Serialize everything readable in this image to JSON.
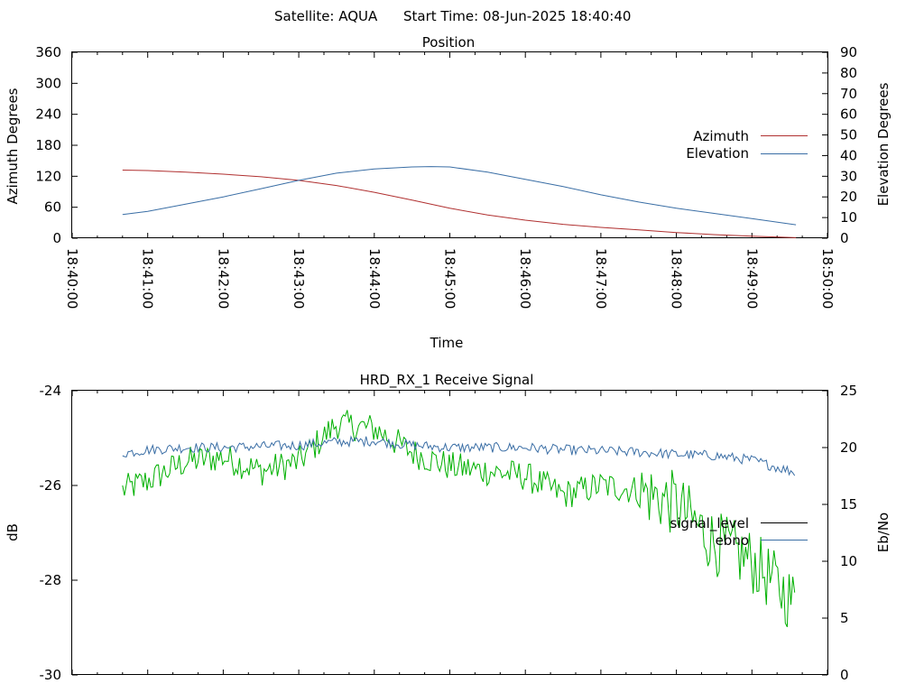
{
  "header": {
    "satellite": "Satellite: AQUA",
    "start_time": "Start Time: 08-Jun-2025 18:40:40"
  },
  "colors": {
    "azimuth": "#b03030",
    "elevation": "#3a6ea5",
    "signal_level": "#00b000",
    "ebno": "#3a6ea5",
    "legend_signal_level": "#000000"
  },
  "chart_data": [
    {
      "type": "line",
      "title": "Position",
      "xlabel": "Time",
      "ylabel": "Azimuth Degrees",
      "y2label": "Elevation Degrees",
      "x_tick_labels": [
        "18:40:00",
        "18:41:00",
        "18:42:00",
        "18:43:00",
        "18:44:00",
        "18:45:00",
        "18:46:00",
        "18:47:00",
        "18:48:00",
        "18:49:00",
        "18:50:00"
      ],
      "xlim": [
        "18:40:00",
        "18:50:00"
      ],
      "ylim": [
        0,
        360
      ],
      "y_ticks": [
        "0",
        "60",
        "120",
        "180",
        "240",
        "300",
        "360"
      ],
      "y2lim": [
        0,
        90
      ],
      "y2_ticks": [
        "0",
        "10",
        "20",
        "30",
        "40",
        "50",
        "60",
        "70",
        "80",
        "90"
      ],
      "legend_position": "right",
      "series": [
        {
          "name": "Azimuth",
          "axis": "left",
          "x": [
            "18:40:40",
            "18:41:00",
            "18:41:30",
            "18:42:00",
            "18:42:30",
            "18:43:00",
            "18:43:30",
            "18:44:00",
            "18:44:30",
            "18:45:00",
            "18:45:30",
            "18:46:00",
            "18:46:30",
            "18:47:00",
            "18:47:30",
            "18:48:00",
            "18:48:30",
            "18:49:00",
            "18:49:35"
          ],
          "values": [
            132,
            131,
            128,
            124,
            119,
            112,
            102,
            89,
            74,
            58,
            45,
            35,
            27,
            21,
            16,
            11,
            7,
            4,
            1
          ]
        },
        {
          "name": "Elevation",
          "axis": "right",
          "x": [
            "18:40:40",
            "18:41:00",
            "18:41:30",
            "18:42:00",
            "18:42:30",
            "18:43:00",
            "18:43:30",
            "18:44:00",
            "18:44:30",
            "18:44:45",
            "18:45:00",
            "18:45:30",
            "18:46:00",
            "18:46:30",
            "18:47:00",
            "18:47:30",
            "18:48:00",
            "18:48:30",
            "18:49:00",
            "18:49:35"
          ],
          "values": [
            11.5,
            13,
            16.5,
            20,
            24,
            28,
            31.5,
            33.5,
            34.5,
            34.7,
            34.5,
            32,
            28.5,
            25,
            21,
            17.5,
            14.5,
            12,
            9.5,
            6.5
          ]
        }
      ]
    },
    {
      "type": "line",
      "title": "HRD_RX_1 Receive Signal",
      "ylabel": "dB",
      "y2label": "Eb/No",
      "xlim": [
        "18:40:00",
        "18:50:00"
      ],
      "ylim": [
        -30,
        -24
      ],
      "y_ticks": [
        "-30",
        "-28",
        "-26",
        "-24"
      ],
      "y2lim": [
        0,
        25
      ],
      "y2_ticks": [
        "0",
        "5",
        "10",
        "15",
        "20",
        "25"
      ],
      "legend_position": "right",
      "series": [
        {
          "name": "signal_level",
          "axis": "left",
          "x": [
            "18:40:40",
            "18:41:00",
            "18:41:30",
            "18:42:00",
            "18:42:30",
            "18:43:00",
            "18:43:30",
            "18:44:00",
            "18:44:30",
            "18:45:00",
            "18:45:30",
            "18:46:00",
            "18:46:30",
            "18:47:00",
            "18:47:30",
            "18:48:00",
            "18:48:30",
            "18:49:00",
            "18:49:35"
          ],
          "values": [
            -26.1,
            -25.9,
            -25.5,
            -25.4,
            -25.7,
            -25.5,
            -24.7,
            -24.8,
            -25.3,
            -25.6,
            -25.7,
            -25.8,
            -26.2,
            -26.0,
            -26.1,
            -26.4,
            -27.2,
            -27.6,
            -28.5
          ]
        },
        {
          "name": "ebno",
          "axis": "right",
          "x": [
            "18:40:40",
            "18:41:00",
            "18:41:30",
            "18:42:00",
            "18:42:30",
            "18:43:00",
            "18:43:30",
            "18:44:00",
            "18:44:30",
            "18:45:00",
            "18:45:30",
            "18:46:00",
            "18:46:30",
            "18:47:00",
            "18:47:30",
            "18:48:00",
            "18:48:30",
            "18:49:00",
            "18:49:35"
          ],
          "values": [
            19.5,
            19.8,
            20.0,
            20.0,
            20.1,
            20.2,
            20.5,
            20.6,
            20.2,
            20.0,
            20.0,
            20.0,
            19.8,
            19.7,
            19.6,
            19.4,
            19.3,
            18.9,
            17.8
          ]
        }
      ]
    }
  ]
}
